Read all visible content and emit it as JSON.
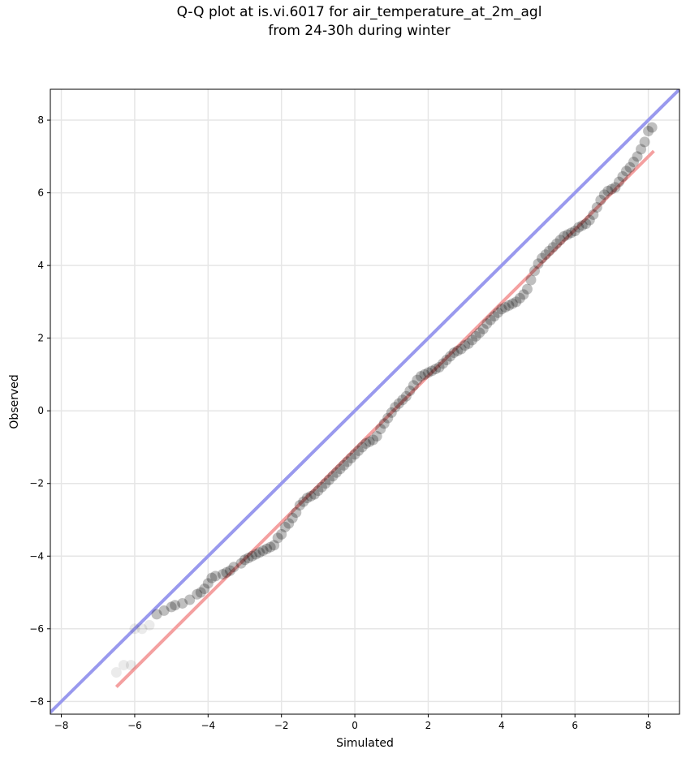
{
  "figure": {
    "title_line1": "Q-Q plot at is.vi.6017 for air_temperature_at_2m_agl",
    "title_line2": "from 24-30h during winter"
  },
  "chart_data": {
    "type": "scatter",
    "title": "Q-Q plot at is.vi.6017 for air_temperature_at_2m_agl\nfrom 24-30h during winter",
    "xlabel": "Simulated",
    "ylabel": "Observed",
    "xlim": [
      -8.3,
      8.85
    ],
    "ylim": [
      -8.35,
      8.85
    ],
    "xticks": [
      -8,
      -6,
      -4,
      -2,
      0,
      2,
      4,
      6,
      8
    ],
    "yticks": [
      -8,
      -6,
      -4,
      -2,
      0,
      2,
      4,
      6,
      8
    ],
    "grid": true,
    "colors": {
      "points": "#000000",
      "identity_line": "#9999ee",
      "fit_line": "#f4a0a0"
    },
    "identity_line": {
      "x": [
        -8.3,
        8.85
      ],
      "y": [
        -8.3,
        8.85
      ]
    },
    "fit_line": {
      "x": [
        -6.5,
        8.15
      ],
      "y": [
        -7.6,
        7.15
      ]
    },
    "series": [
      {
        "type": "scatter",
        "points": [
          [
            -6.5,
            -7.2
          ],
          [
            -6.3,
            -7.0
          ],
          [
            -6.1,
            -7.0
          ],
          [
            -6.0,
            -6.0
          ],
          [
            -5.8,
            -6.0
          ],
          [
            -5.6,
            -5.9
          ],
          [
            -5.4,
            -5.6
          ],
          [
            -5.2,
            -5.5
          ],
          [
            -5.0,
            -5.4
          ],
          [
            -4.9,
            -5.35
          ],
          [
            -4.7,
            -5.3
          ],
          [
            -4.5,
            -5.2
          ],
          [
            -4.3,
            -5.05
          ],
          [
            -4.2,
            -5.0
          ],
          [
            -4.1,
            -4.9
          ],
          [
            -4.0,
            -4.75
          ],
          [
            -3.9,
            -4.6
          ],
          [
            -3.8,
            -4.55
          ],
          [
            -3.6,
            -4.5
          ],
          [
            -3.5,
            -4.45
          ],
          [
            -3.4,
            -4.4
          ],
          [
            -3.3,
            -4.3
          ],
          [
            -3.1,
            -4.2
          ],
          [
            -3.0,
            -4.1
          ],
          [
            -2.9,
            -4.05
          ],
          [
            -2.8,
            -4.0
          ],
          [
            -2.7,
            -3.95
          ],
          [
            -2.6,
            -3.9
          ],
          [
            -2.5,
            -3.85
          ],
          [
            -2.4,
            -3.8
          ],
          [
            -2.3,
            -3.75
          ],
          [
            -2.2,
            -3.7
          ],
          [
            -2.1,
            -3.5
          ],
          [
            -2.0,
            -3.4
          ],
          [
            -1.9,
            -3.2
          ],
          [
            -1.8,
            -3.1
          ],
          [
            -1.7,
            -2.95
          ],
          [
            -1.6,
            -2.8
          ],
          [
            -1.5,
            -2.6
          ],
          [
            -1.4,
            -2.5
          ],
          [
            -1.3,
            -2.4
          ],
          [
            -1.2,
            -2.35
          ],
          [
            -1.1,
            -2.3
          ],
          [
            -1.0,
            -2.2
          ],
          [
            -0.9,
            -2.1
          ],
          [
            -0.8,
            -2.0
          ],
          [
            -0.7,
            -1.9
          ],
          [
            -0.6,
            -1.8
          ],
          [
            -0.5,
            -1.7
          ],
          [
            -0.4,
            -1.6
          ],
          [
            -0.3,
            -1.5
          ],
          [
            -0.2,
            -1.4
          ],
          [
            -0.1,
            -1.3
          ],
          [
            0.0,
            -1.2
          ],
          [
            0.1,
            -1.1
          ],
          [
            0.2,
            -1.0
          ],
          [
            0.3,
            -0.9
          ],
          [
            0.4,
            -0.85
          ],
          [
            0.5,
            -0.8
          ],
          [
            0.6,
            -0.7
          ],
          [
            0.7,
            -0.5
          ],
          [
            0.8,
            -0.35
          ],
          [
            0.9,
            -0.2
          ],
          [
            1.0,
            -0.05
          ],
          [
            1.1,
            0.1
          ],
          [
            1.2,
            0.2
          ],
          [
            1.3,
            0.3
          ],
          [
            1.4,
            0.4
          ],
          [
            1.5,
            0.55
          ],
          [
            1.6,
            0.7
          ],
          [
            1.7,
            0.85
          ],
          [
            1.8,
            0.95
          ],
          [
            1.9,
            1.0
          ],
          [
            2.0,
            1.05
          ],
          [
            2.1,
            1.1
          ],
          [
            2.2,
            1.15
          ],
          [
            2.3,
            1.2
          ],
          [
            2.4,
            1.3
          ],
          [
            2.5,
            1.4
          ],
          [
            2.6,
            1.5
          ],
          [
            2.7,
            1.6
          ],
          [
            2.8,
            1.65
          ],
          [
            2.9,
            1.7
          ],
          [
            3.0,
            1.8
          ],
          [
            3.1,
            1.85
          ],
          [
            3.2,
            1.95
          ],
          [
            3.3,
            2.05
          ],
          [
            3.4,
            2.15
          ],
          [
            3.5,
            2.25
          ],
          [
            3.6,
            2.4
          ],
          [
            3.7,
            2.5
          ],
          [
            3.8,
            2.6
          ],
          [
            3.9,
            2.7
          ],
          [
            4.0,
            2.8
          ],
          [
            4.1,
            2.85
          ],
          [
            4.2,
            2.9
          ],
          [
            4.3,
            2.95
          ],
          [
            4.4,
            3.0
          ],
          [
            4.5,
            3.1
          ],
          [
            4.6,
            3.2
          ],
          [
            4.7,
            3.35
          ],
          [
            4.8,
            3.6
          ],
          [
            4.9,
            3.85
          ],
          [
            5.0,
            4.05
          ],
          [
            5.1,
            4.2
          ],
          [
            5.2,
            4.3
          ],
          [
            5.3,
            4.4
          ],
          [
            5.4,
            4.5
          ],
          [
            5.5,
            4.6
          ],
          [
            5.6,
            4.7
          ],
          [
            5.7,
            4.8
          ],
          [
            5.8,
            4.85
          ],
          [
            5.9,
            4.9
          ],
          [
            6.0,
            4.95
          ],
          [
            6.1,
            5.05
          ],
          [
            6.2,
            5.1
          ],
          [
            6.3,
            5.15
          ],
          [
            6.4,
            5.25
          ],
          [
            6.5,
            5.4
          ],
          [
            6.6,
            5.6
          ],
          [
            6.7,
            5.8
          ],
          [
            6.8,
            5.95
          ],
          [
            6.9,
            6.05
          ],
          [
            7.0,
            6.1
          ],
          [
            7.1,
            6.15
          ],
          [
            7.2,
            6.3
          ],
          [
            7.3,
            6.45
          ],
          [
            7.4,
            6.6
          ],
          [
            7.5,
            6.7
          ],
          [
            7.6,
            6.85
          ],
          [
            7.7,
            7.0
          ],
          [
            7.8,
            7.2
          ],
          [
            7.9,
            7.4
          ],
          [
            8.0,
            7.7
          ],
          [
            8.1,
            7.8
          ]
        ]
      }
    ]
  }
}
